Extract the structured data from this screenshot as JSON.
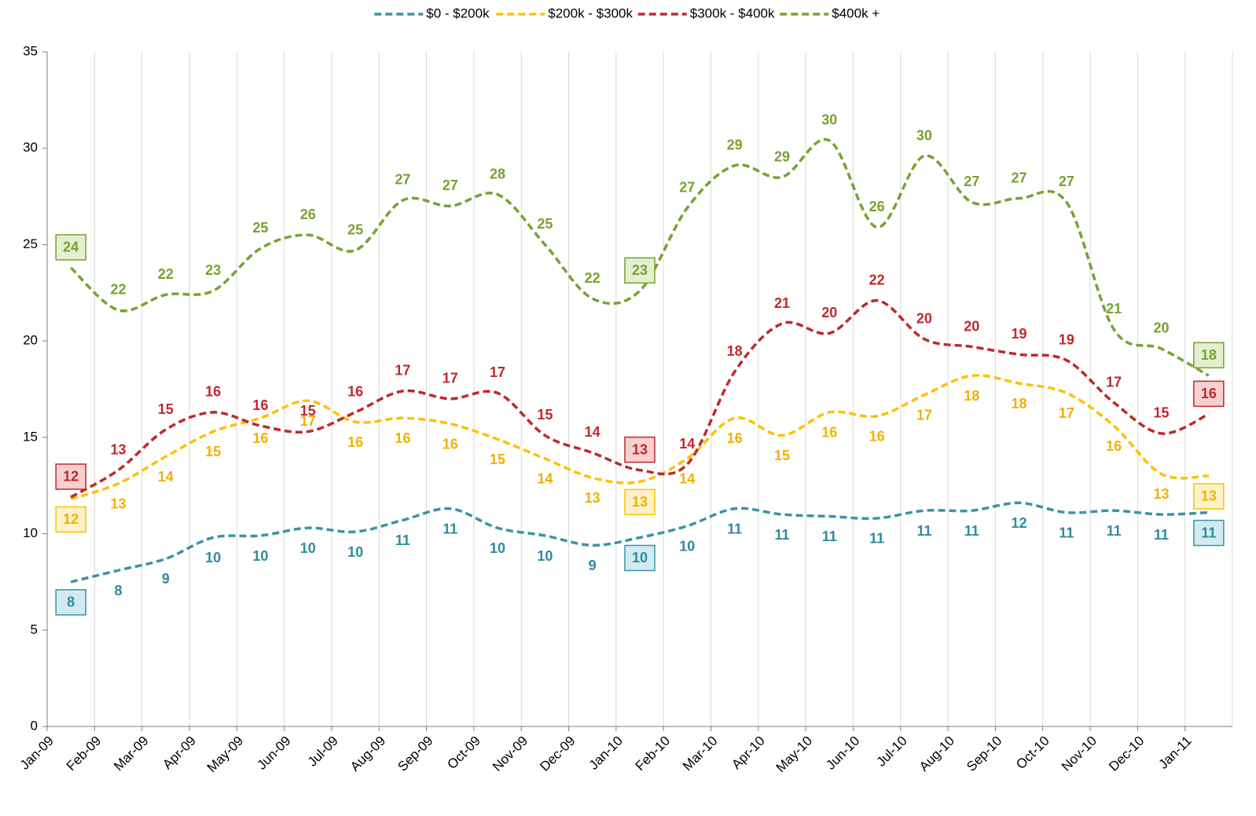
{
  "chart_data": {
    "type": "line",
    "categories": [
      "Jan-09",
      "Feb-09",
      "Mar-09",
      "Apr-09",
      "May-09",
      "Jun-09",
      "Jul-09",
      "Aug-09",
      "Sep-09",
      "Oct-09",
      "Nov-09",
      "Dec-09",
      "Jan-10",
      "Feb-10",
      "Mar-10",
      "Apr-10",
      "May-10",
      "Jun-10",
      "Jul-10",
      "Aug-10",
      "Sep-10",
      "Oct-10",
      "Nov-10",
      "Dec-10",
      "Jan-11"
    ],
    "series": [
      {
        "name": "$0 - $200k",
        "color": "#3a93a8",
        "values": [
          7.5,
          8.1,
          8.7,
          9.8,
          9.9,
          10.3,
          10.1,
          10.7,
          11.3,
          10.3,
          9.9,
          9.4,
          9.8,
          10.4,
          11.3,
          11.0,
          10.9,
          10.8,
          11.2,
          11.2,
          11.6,
          11.1,
          11.2,
          11.0,
          11.1
        ],
        "value_labels": [
          "8",
          "8",
          "9",
          "10",
          "10",
          "10",
          "10",
          "11",
          "11",
          "10",
          "10",
          "9",
          "10",
          "10",
          "11",
          "11",
          "11",
          "11",
          "11",
          "11",
          "12",
          "11",
          "11",
          "11",
          "11"
        ]
      },
      {
        "name": "$200k - $300k",
        "color": "#ffc000",
        "values": [
          11.8,
          12.6,
          14.0,
          15.3,
          16.0,
          16.9,
          15.8,
          16.0,
          15.7,
          14.9,
          13.9,
          12.9,
          12.7,
          13.9,
          16.0,
          15.1,
          16.3,
          16.1,
          17.2,
          18.2,
          17.8,
          17.3,
          15.6,
          13.1,
          13.0
        ],
        "value_labels": [
          "12",
          "13",
          "14",
          "15",
          "16",
          "17",
          "16",
          "16",
          "16",
          "15",
          "14",
          "13",
          "13",
          "14",
          "16",
          "15",
          "16",
          "16",
          "17",
          "18",
          "18",
          "17",
          "16",
          "13",
          "13"
        ]
      },
      {
        "name": "$300k - $400k",
        "color": "#c0282d",
        "values": [
          11.9,
          13.3,
          15.4,
          16.3,
          15.6,
          15.3,
          16.3,
          17.4,
          17.0,
          17.3,
          15.1,
          14.2,
          13.3,
          13.6,
          18.4,
          20.9,
          20.4,
          22.1,
          20.1,
          19.7,
          19.3,
          19.0,
          16.8,
          15.2,
          16.2
        ],
        "value_labels": [
          "12",
          "13",
          "15",
          "16",
          "16",
          "15",
          "16",
          "17",
          "17",
          "17",
          "15",
          "14",
          "13",
          "14",
          "18",
          "21",
          "20",
          "22",
          "20",
          "20",
          "19",
          "19",
          "17",
          "15",
          "16"
        ]
      },
      {
        "name": "$400k +",
        "color": "#78a22f",
        "values": [
          23.8,
          21.6,
          22.4,
          22.6,
          24.8,
          25.5,
          24.7,
          27.3,
          27.0,
          27.6,
          25.0,
          22.2,
          22.6,
          26.9,
          29.1,
          28.5,
          30.4,
          25.9,
          29.6,
          27.2,
          27.4,
          27.2,
          20.6,
          19.6,
          18.2
        ],
        "value_labels": [
          "24",
          "22",
          "22",
          "23",
          "25",
          "26",
          "25",
          "27",
          "27",
          "28",
          "25",
          "22",
          "23",
          "27",
          "29",
          "29",
          "30",
          "26",
          "30",
          "27",
          "27",
          "27",
          "21",
          "20",
          "18"
        ]
      }
    ],
    "ylim": [
      0,
      35
    ],
    "yticks": [
      0,
      5,
      10,
      15,
      20,
      25,
      30,
      35
    ],
    "grid": "x",
    "legend": "top"
  }
}
